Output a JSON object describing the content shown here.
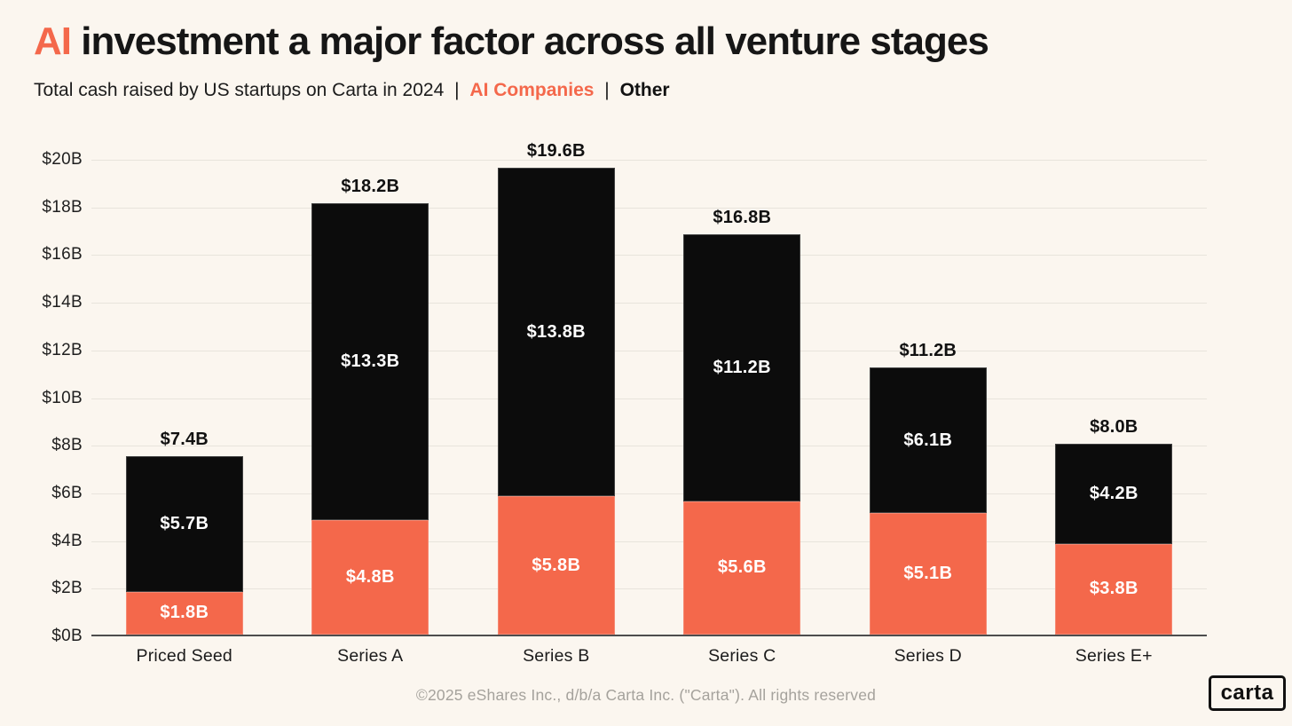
{
  "page": {
    "background_color": "#FBF6EF",
    "accent_color": "#F4684B",
    "bar_black_color": "#0C0C0C"
  },
  "header": {
    "title_highlight": "AI",
    "title_rest": "investment a major factor across all venture stages",
    "subtitle_text": "Total cash raised by US startups on Carta in 2024",
    "subtitle_separator": "|",
    "legend_ai_label": "AI Companies",
    "legend_other_label": "Other"
  },
  "chart_data": {
    "type": "bar",
    "stacked": true,
    "title": "AI investment a major factor across all venture stages",
    "subtitle": "Total cash raised by US startups on Carta in 2024 | AI Companies | Other",
    "categories": [
      "Priced Seed",
      "Series A",
      "Series B",
      "Series C",
      "Series D",
      "Series E+"
    ],
    "series": [
      {
        "name": "AI Companies",
        "color": "#F4684B",
        "values": [
          1.8,
          4.8,
          5.8,
          5.6,
          5.1,
          3.8
        ],
        "value_labels": [
          "$1.8B",
          "$4.8B",
          "$5.8B",
          "$5.6B",
          "$5.1B",
          "$3.8B"
        ]
      },
      {
        "name": "Other",
        "color": "#0C0C0C",
        "values": [
          5.7,
          13.3,
          13.8,
          11.2,
          6.1,
          4.2
        ],
        "value_labels": [
          "$5.7B",
          "$13.3B",
          "$13.8B",
          "$11.2B",
          "$6.1B",
          "$4.2B"
        ]
      }
    ],
    "totals": [
      7.4,
      18.2,
      19.6,
      16.8,
      11.2,
      8.0
    ],
    "total_labels": [
      "$7.4B",
      "$18.2B",
      "$19.6B",
      "$16.8B",
      "$11.2B",
      "$8.0B"
    ],
    "y_ticks": [
      "$0B",
      "$2B",
      "$4B",
      "$6B",
      "$8B",
      "$10B",
      "$12B",
      "$14B",
      "$16B",
      "$18B",
      "$20B"
    ],
    "ylim": [
      0,
      20
    ],
    "xlabel": "",
    "ylabel": "",
    "grid": "horizontal",
    "legend_position": "in-subtitle"
  },
  "footer": {
    "copyright": "©2025 eShares Inc., d/b/a Carta Inc. (\"Carta\"). All rights reserved",
    "logo_text": "carta"
  }
}
